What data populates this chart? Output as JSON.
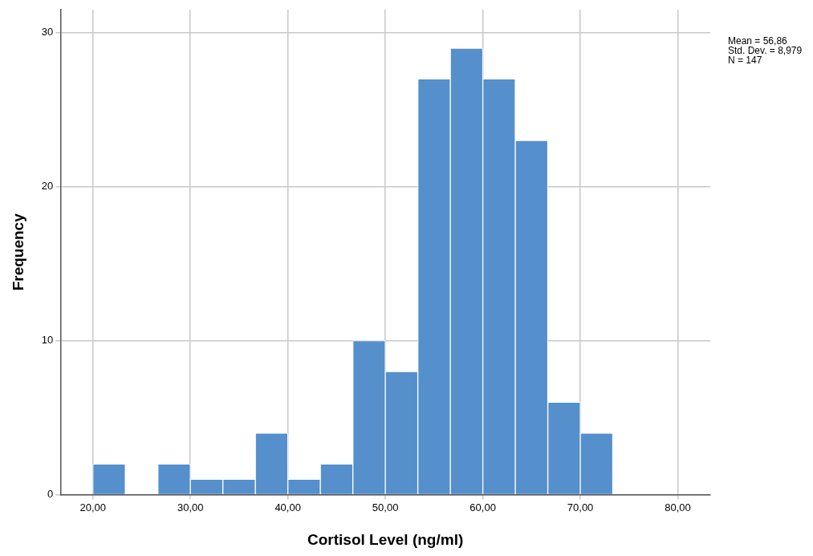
{
  "chart_data": {
    "type": "histogram",
    "xlabel": "Cortisol Level (ng/ml)",
    "ylabel": "Frequency",
    "bins": [
      20,
      23.33,
      26.67,
      30,
      33.33,
      36.67,
      40,
      43.33,
      46.67,
      50,
      53.33,
      56.67,
      60,
      63.33,
      66.67,
      70,
      73.33
    ],
    "values": [
      2,
      0,
      2,
      1,
      1,
      4,
      1,
      2,
      10,
      8,
      27,
      29,
      27,
      23,
      6,
      4
    ],
    "color": "#558fcc",
    "xlim": [
      16.67,
      83.33
    ],
    "xticks": [
      {
        "value": 20,
        "label": "20,00"
      },
      {
        "value": 30,
        "label": "30,00"
      },
      {
        "value": 40,
        "label": "40,00"
      },
      {
        "value": 50,
        "label": "50,00"
      },
      {
        "value": 60,
        "label": "60,00"
      },
      {
        "value": 70,
        "label": "70,00"
      },
      {
        "value": 80,
        "label": "80,00"
      }
    ],
    "ylim": [
      0,
      31.5
    ],
    "yticks": [
      0,
      10,
      20,
      30
    ],
    "grid": true,
    "legend": false,
    "annotations": [
      "Mean = 56,86",
      "Std. Dev. = 8,979",
      "N = 147"
    ]
  }
}
